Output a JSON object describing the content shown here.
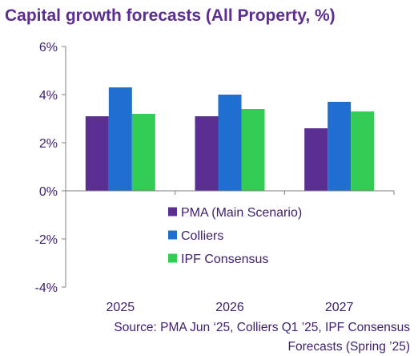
{
  "colors": {
    "title": "#5b2e91",
    "text": "#3d1f6e",
    "axis": "#7f7f7f"
  },
  "chart_data": {
    "type": "bar",
    "title": "Capital growth forecasts (All Property, %)",
    "categories": [
      "2025",
      "2026",
      "2027"
    ],
    "series": [
      {
        "name": "PMA (Main Scenario)",
        "color": "#5b2e91",
        "values": [
          3.1,
          3.1,
          2.6
        ]
      },
      {
        "name": "Colliers",
        "color": "#1f6fd1",
        "values": [
          4.3,
          4.0,
          3.7
        ]
      },
      {
        "name": "IPF Consensus",
        "color": "#33cc55",
        "values": [
          3.2,
          3.4,
          3.3
        ]
      }
    ],
    "ylim": [
      -4,
      6
    ],
    "yticks": [
      6,
      4,
      2,
      0,
      -2,
      -4
    ],
    "ytick_labels": [
      "6%",
      "4%",
      "2%",
      "0%",
      "-2%",
      "-4%"
    ],
    "grid": false,
    "legend_position": "lower-right",
    "source_lines": [
      "Source: PMA Jun ‘25, Colliers Q1 ’25, IPF Consensus",
      "Forecasts (Spring ’25)"
    ]
  }
}
